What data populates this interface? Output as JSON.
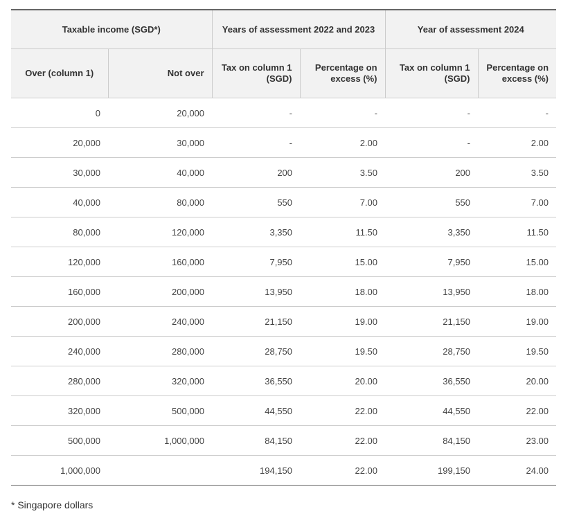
{
  "table": {
    "header_top": {
      "taxable_income": "Taxable income (SGD*)",
      "ya_2022_2023": "Years of assessment 2022 and 2023",
      "ya_2024": "Year of assessment 2024"
    },
    "header_sub": {
      "over": "Over (column 1)",
      "not_over": "Not over",
      "tax_on_col1_a": "Tax on column 1 (SGD)",
      "pct_on_excess_a": "Percentage on excess (%)",
      "tax_on_col1_b": "Tax on column 1 (SGD)",
      "pct_on_excess_b": "Percentage on excess (%)"
    },
    "rows": [
      [
        "0",
        "20,000",
        "-",
        "-",
        "-",
        "-"
      ],
      [
        "20,000",
        "30,000",
        "-",
        "2.00",
        "-",
        "2.00"
      ],
      [
        "30,000",
        "40,000",
        "200",
        "3.50",
        "200",
        "3.50"
      ],
      [
        "40,000",
        "80,000",
        "550",
        "7.00",
        "550",
        "7.00"
      ],
      [
        "80,000",
        "120,000",
        "3,350",
        "11.50",
        "3,350",
        "11.50"
      ],
      [
        "120,000",
        "160,000",
        "7,950",
        "15.00",
        "7,950",
        "15.00"
      ],
      [
        "160,000",
        "200,000",
        "13,950",
        "18.00",
        "13,950",
        "18.00"
      ],
      [
        "200,000",
        "240,000",
        "21,150",
        "19.00",
        "21,150",
        "19.00"
      ],
      [
        "240,000",
        "280,000",
        "28,750",
        "19.50",
        "28,750",
        "19.50"
      ],
      [
        "280,000",
        "320,000",
        "36,550",
        "20.00",
        "36,550",
        "20.00"
      ],
      [
        "320,000",
        "500,000",
        "44,550",
        "22.00",
        "44,550",
        "22.00"
      ],
      [
        "500,000",
        "1,000,000",
        "84,150",
        "22.00",
        "84,150",
        "23.00"
      ],
      [
        "1,000,000",
        "",
        "194,150",
        "22.00",
        "199,150",
        "24.00"
      ]
    ]
  },
  "footnote": "* Singapore dollars"
}
